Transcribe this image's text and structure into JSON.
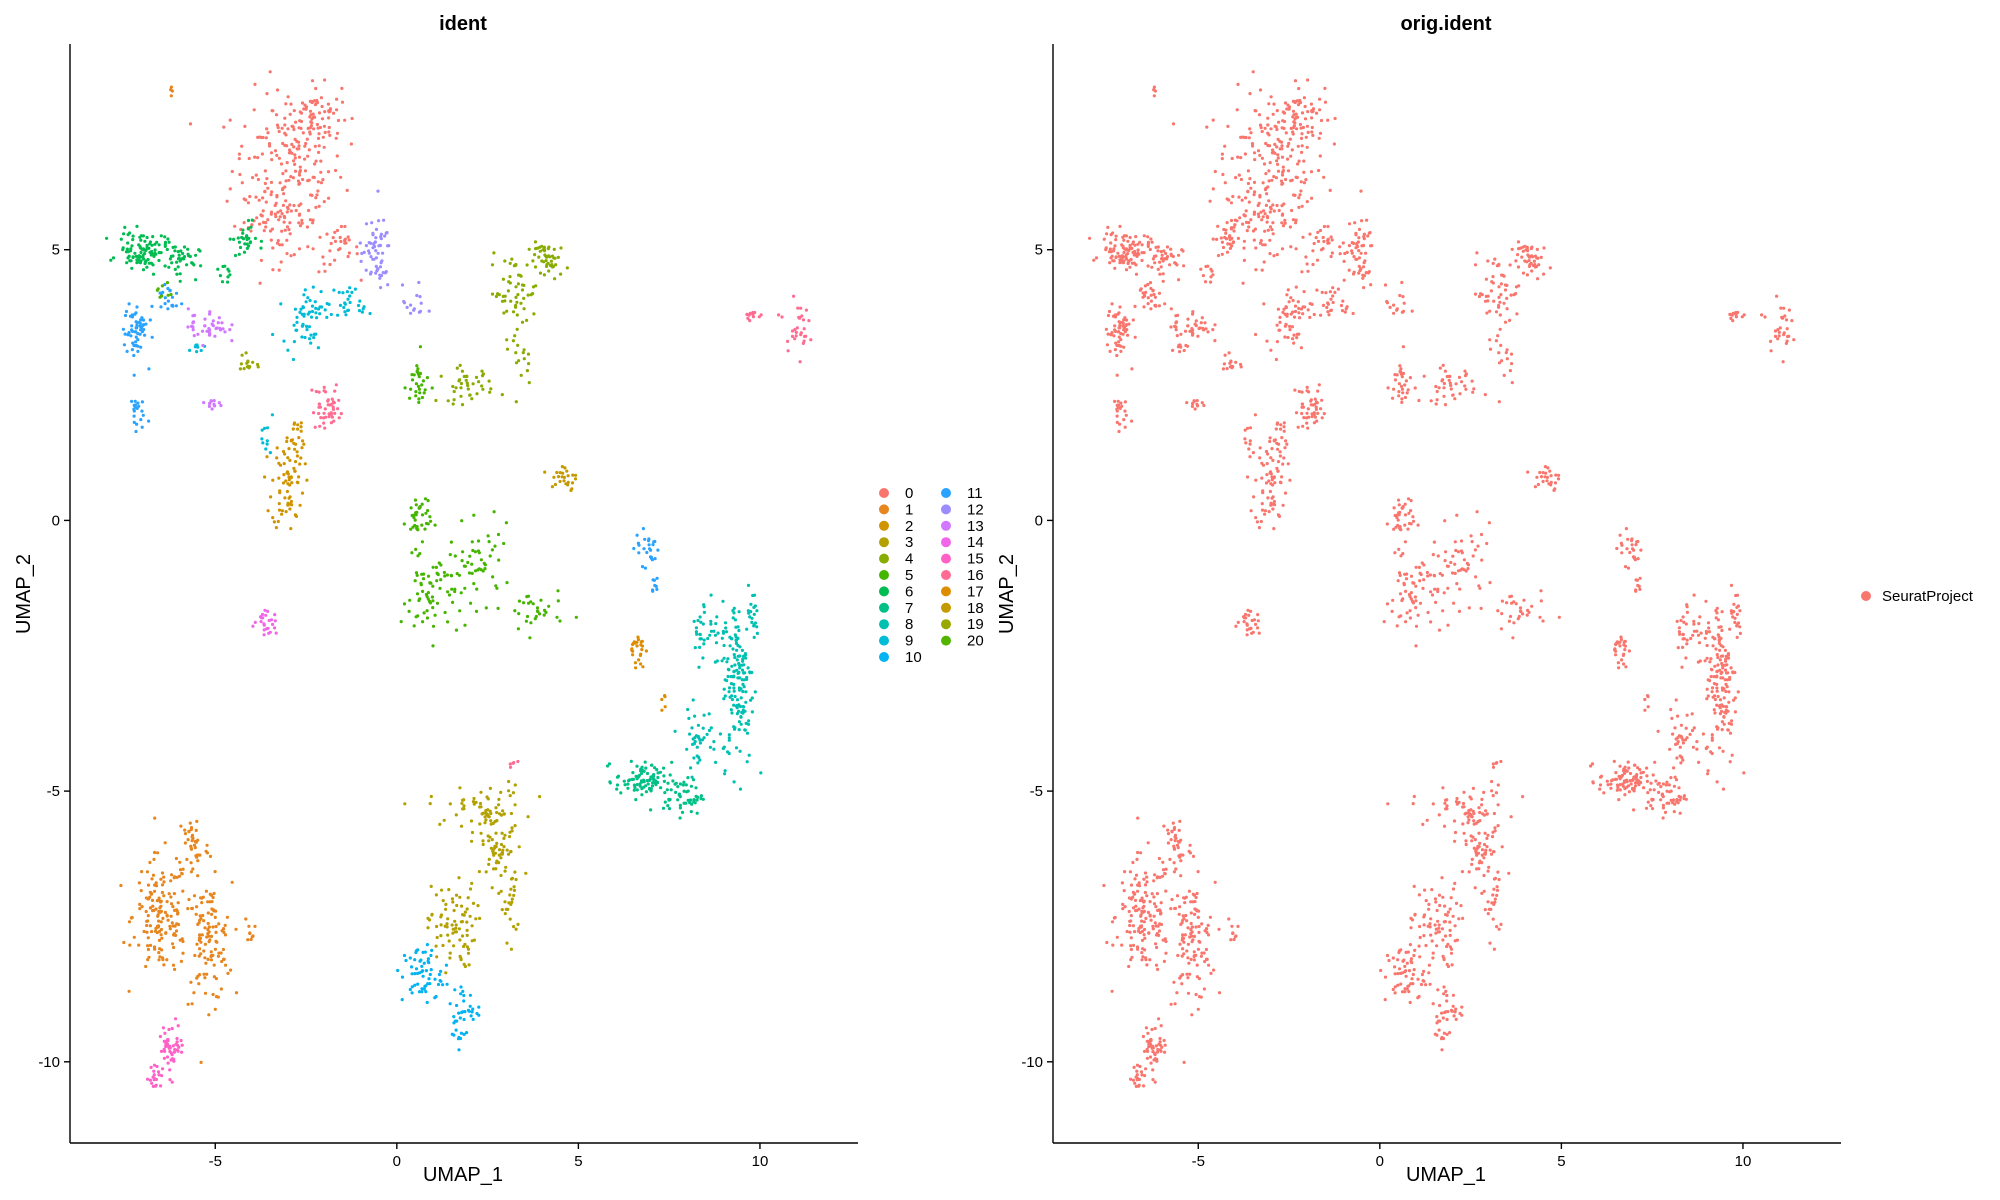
{
  "chart_data": [
    {
      "type": "scatter",
      "title": "ident",
      "xlabel": "UMAP_1",
      "ylabel": "UMAP_2",
      "xlim": [
        -9,
        12.7
      ],
      "ylim": [
        -11.5,
        8.8
      ],
      "xticks": [
        -5,
        0,
        5,
        10
      ],
      "yticks": [
        -10,
        -5,
        0,
        5
      ],
      "grid": false,
      "legend_position": "right",
      "legend": [
        "0",
        "1",
        "2",
        "3",
        "4",
        "5",
        "6",
        "7",
        "8",
        "9",
        "10",
        "11",
        "12",
        "13",
        "14",
        "15",
        "16",
        "17",
        "18",
        "19",
        "20"
      ],
      "colors": [
        "#F8766D",
        "#E7851E",
        "#D09400",
        "#B2A100",
        "#89AC00",
        "#45B500",
        "#00BC51",
        "#00C087",
        "#00C0B2",
        "#00BCD6",
        "#00B3F2",
        "#29A3FF",
        "#9C8DFF",
        "#D277FF",
        "#F166E8",
        "#FF61C7",
        "#FF6C91",
        "#DE8C00",
        "#C49A00",
        "#99A800",
        "#53B400"
      ],
      "clusters": [
        {
          "label": "0",
          "shape": [
            [
              -3,
              6.5,
              1.4,
              1.3,
              180
            ],
            [
              -2.3,
              7.5,
              0.7,
              0.5,
              70
            ],
            [
              -3.2,
              5.5,
              1,
              0.6,
              60
            ],
            [
              -1.6,
              5,
              0.5,
              0.4,
              30
            ]
          ]
        },
        {
          "label": "1",
          "shape": [
            [
              -6.5,
              -7.3,
              0.7,
              1,
              150
            ],
            [
              -5.2,
              -7.8,
              0.6,
              1,
              120
            ],
            [
              -5.6,
              -6,
              0.4,
              0.6,
              40
            ],
            [
              -4,
              -7.6,
              0.15,
              0.2,
              8
            ],
            [
              -6.2,
              8,
              0.1,
              0.1,
              4
            ]
          ]
        },
        {
          "label": "2",
          "shape": [
            [
              -3,
              0.7,
              0.4,
              0.8,
              70
            ],
            [
              -2.8,
              1.5,
              0.3,
              0.5,
              20
            ]
          ]
        },
        {
          "label": "3",
          "shape": [
            [
              1.5,
              -7.5,
              0.6,
              0.7,
              80
            ],
            [
              2.8,
              -6,
              0.6,
              1,
              90
            ],
            [
              3.1,
              -7.2,
              0.2,
              0.5,
              20
            ],
            [
              2.2,
              -5.3,
              1.2,
              0.3,
              40
            ]
          ]
        },
        {
          "label": "4",
          "shape": [
            [
              3.2,
              4.2,
              0.6,
              0.6,
              50
            ],
            [
              4.2,
              4.8,
              0.5,
              0.3,
              50
            ],
            [
              1.9,
              2.5,
              0.7,
              0.3,
              40
            ],
            [
              3.5,
              3,
              0.3,
              0.5,
              15
            ]
          ]
        },
        {
          "label": "5",
          "shape": [
            [
              0.6,
              0,
              0.3,
              0.5,
              40
            ],
            [
              1,
              -1.4,
              0.8,
              0.7,
              70
            ],
            [
              2.3,
              -0.8,
              0.8,
              0.6,
              50
            ],
            [
              3.8,
              -1.7,
              0.7,
              0.4,
              30
            ],
            [
              0.6,
              2.5,
              0.3,
              0.5,
              30
            ]
          ]
        },
        {
          "label": "6",
          "shape": [
            [
              -7,
              5,
              0.6,
              0.3,
              100
            ],
            [
              -6,
              4.8,
              0.5,
              0.3,
              40
            ],
            [
              -4.2,
              5.2,
              0.3,
              0.3,
              30
            ],
            [
              -4.8,
              4.5,
              0.2,
              0.2,
              10
            ]
          ]
        },
        {
          "label": "7",
          "shape": [
            [
              6.8,
              -4.8,
              0.7,
              0.3,
              90
            ],
            [
              7.9,
              -5.1,
              0.5,
              0.3,
              50
            ]
          ]
        },
        {
          "label": "8",
          "shape": [
            [
              9.4,
              -3,
              0.4,
              1.4,
              150
            ],
            [
              8.6,
              -2,
              0.5,
              0.6,
              40
            ],
            [
              8.3,
              -4,
              0.5,
              0.5,
              40
            ],
            [
              9.8,
              -1.8,
              0.15,
              0.5,
              20
            ]
          ]
        },
        {
          "label": "9",
          "shape": [
            [
              -2.5,
              3.8,
              0.6,
              0.5,
              60
            ],
            [
              -1.2,
              4,
              0.4,
              0.3,
              25
            ],
            [
              -3.6,
              1.5,
              0.2,
              0.3,
              10
            ],
            [
              -5.5,
              3.2,
              0.2,
              0.1,
              8
            ]
          ]
        },
        {
          "label": "10",
          "shape": [
            [
              0.7,
              -8.4,
              0.5,
              0.5,
              60
            ],
            [
              1.8,
              -9,
              0.4,
              0.4,
              30
            ],
            [
              1.7,
              -9.5,
              0.15,
              0.2,
              10
            ]
          ]
        },
        {
          "label": "11",
          "shape": [
            [
              -7.2,
              3.5,
              0.3,
              0.5,
              60
            ],
            [
              -7.2,
              2,
              0.2,
              0.3,
              20
            ],
            [
              -6.3,
              4.1,
              0.4,
              0.3,
              20
            ],
            [
              6.9,
              -0.5,
              0.3,
              0.3,
              25
            ],
            [
              7.1,
              -1.2,
              0.15,
              0.2,
              8
            ]
          ]
        },
        {
          "label": "12",
          "shape": [
            [
              -0.6,
              4.9,
              0.4,
              0.6,
              60
            ],
            [
              0.5,
              4,
              0.3,
              0.3,
              15
            ]
          ]
        },
        {
          "label": "13",
          "shape": [
            [
              -5.2,
              3.6,
              0.5,
              0.3,
              40
            ],
            [
              -5.1,
              2.2,
              0.3,
              0.2,
              12
            ]
          ]
        },
        {
          "label": "14",
          "shape": [
            [
              -3.6,
              -1.9,
              0.3,
              0.2,
              25
            ]
          ]
        },
        {
          "label": "15",
          "shape": [
            [
              -6.2,
              -9.7,
              0.3,
              0.4,
              50
            ],
            [
              -6.6,
              -10.3,
              0.25,
              0.2,
              20
            ]
          ]
        },
        {
          "label": "16",
          "shape": [
            [
              -1.9,
              2.1,
              0.4,
              0.4,
              45
            ],
            [
              9.8,
              3.8,
              0.2,
              0.1,
              12
            ],
            [
              11,
              3.6,
              0.3,
              0.4,
              30
            ],
            [
              3.2,
              -4.5,
              0.1,
              0.1,
              5
            ]
          ]
        },
        {
          "label": "17",
          "shape": [
            [
              6.6,
              -2.4,
              0.2,
              0.3,
              25
            ],
            [
              7.3,
              -3.3,
              0.1,
              0.2,
              5
            ]
          ]
        },
        {
          "label": "18",
          "shape": [
            [
              4.6,
              0.8,
              0.4,
              0.3,
              25
            ]
          ]
        },
        {
          "label": "19",
          "shape": [
            [
              -4.1,
              2.9,
              0.2,
              0.2,
              15
            ]
          ]
        },
        {
          "label": "20",
          "shape": [
            [
              -6.4,
              4.2,
              0.2,
              0.2,
              8
            ]
          ]
        }
      ]
    },
    {
      "type": "scatter",
      "title": "orig.ident",
      "xlabel": "UMAP_1",
      "ylabel": "UMAP_2",
      "xlim": [
        -9,
        12.7
      ],
      "ylim": [
        -11.5,
        8.8
      ],
      "xticks": [
        -5,
        0,
        5,
        10
      ],
      "yticks": [
        -10,
        -5,
        0,
        5
      ],
      "grid": false,
      "legend_position": "right",
      "legend": [
        "SeuratProject"
      ],
      "colors": [
        "#F8766D"
      ],
      "clusters": [
        {
          "label": "SeuratProject",
          "shape": "same as ident panel (all cells)"
        }
      ]
    }
  ]
}
